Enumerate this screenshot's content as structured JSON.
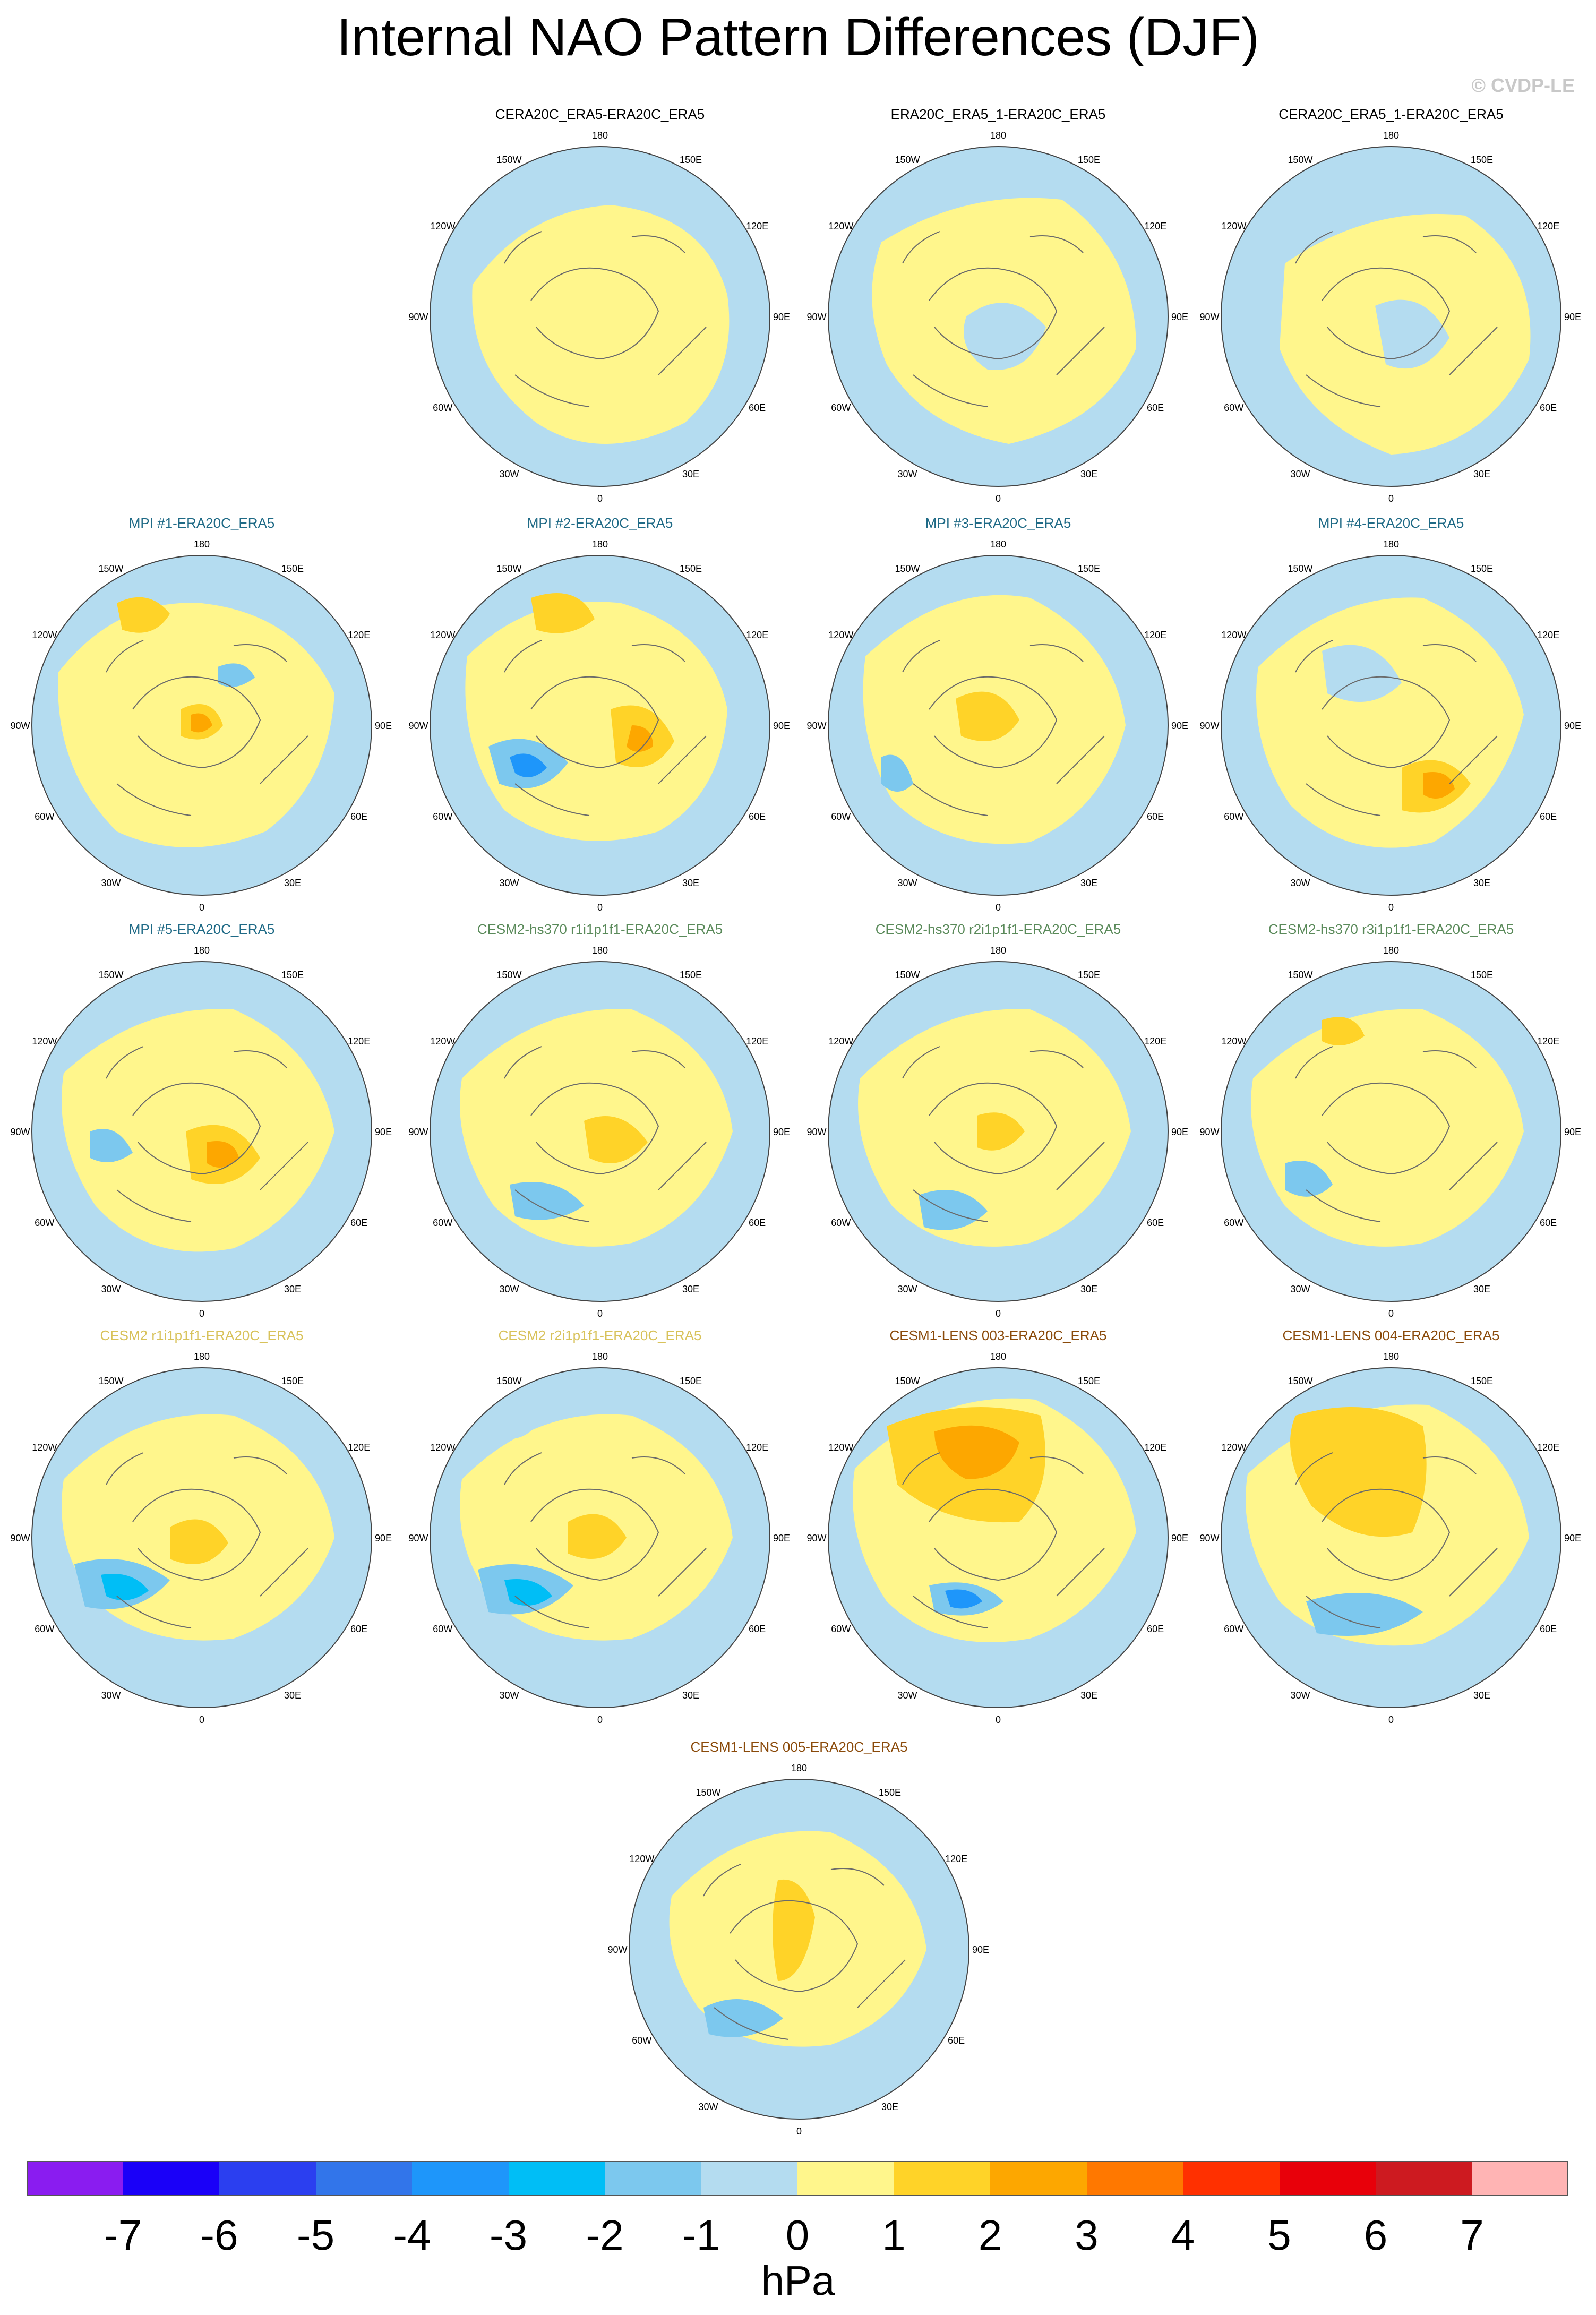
{
  "title": "Internal NAO Pattern Differences (DJF)",
  "credit": "© CVDP-LE",
  "lon_labels": {
    "n": "180",
    "nne": "150E",
    "ene": "120E",
    "e": "90E",
    "ese": "60E",
    "sse": "30E",
    "s": "0",
    "ssw": "30W",
    "wsw": "60W",
    "w": "90W",
    "wnw": "120W",
    "nnw": "150W"
  },
  "colors": {
    "label_black": "#000000",
    "label_teal": "#1f6a86",
    "label_green": "#5a8a5a",
    "label_yellow": "#d8c25a",
    "label_brown": "#8a4a0a"
  },
  "panels": [
    {
      "title": "CERA20C_ERA5-ERA20C_ERA5",
      "title_color": "#000000",
      "pattern": "neutral-a"
    },
    {
      "title": "ERA20C_ERA5_1-ERA20C_ERA5",
      "title_color": "#000000",
      "pattern": "neutral-b"
    },
    {
      "title": "CERA20C_ERA5_1-ERA20C_ERA5",
      "title_color": "#000000",
      "pattern": "neutral-c"
    },
    {
      "title": "MPI #1-ERA20C_ERA5",
      "title_color": "#1f6a86",
      "pattern": "mpi1"
    },
    {
      "title": "MPI #2-ERA20C_ERA5",
      "title_color": "#1f6a86",
      "pattern": "mpi2"
    },
    {
      "title": "MPI #3-ERA20C_ERA5",
      "title_color": "#1f6a86",
      "pattern": "mpi3"
    },
    {
      "title": "MPI #4-ERA20C_ERA5",
      "title_color": "#1f6a86",
      "pattern": "mpi4"
    },
    {
      "title": "MPI #5-ERA20C_ERA5",
      "title_color": "#1f6a86",
      "pattern": "mpi5"
    },
    {
      "title": "CESM2-hs370 r1i1p1f1-ERA20C_ERA5",
      "title_color": "#5a8a5a",
      "pattern": "hs1"
    },
    {
      "title": "CESM2-hs370 r2i1p1f1-ERA20C_ERA5",
      "title_color": "#5a8a5a",
      "pattern": "hs2"
    },
    {
      "title": "CESM2-hs370 r3i1p1f1-ERA20C_ERA5",
      "title_color": "#5a8a5a",
      "pattern": "hs3"
    },
    {
      "title": "CESM2 r1i1p1f1-ERA20C_ERA5",
      "title_color": "#d8c25a",
      "pattern": "c2r1"
    },
    {
      "title": "CESM2 r2i1p1f1-ERA20C_ERA5",
      "title_color": "#d8c25a",
      "pattern": "c2r2"
    },
    {
      "title": "CESM1-LENS 003-ERA20C_ERA5",
      "title_color": "#8a4a0a",
      "pattern": "l3"
    },
    {
      "title": "CESM1-LENS 004-ERA20C_ERA5",
      "title_color": "#8a4a0a",
      "pattern": "l4"
    },
    {
      "title": "CESM1-LENS 005-ERA20C_ERA5",
      "title_color": "#8a4a0a",
      "pattern": "l5"
    }
  ],
  "colorbar": {
    "units": "hPa",
    "labels": [
      "-7",
      "-6",
      "-5",
      "-4",
      "-3",
      "-2",
      "-1",
      "0",
      "1",
      "2",
      "3",
      "4",
      "5",
      "6",
      "7"
    ],
    "colors": [
      "#8a1cf0",
      "#1a00f8",
      "#2b3ff0",
      "#3275ea",
      "#1e96fa",
      "#00bef6",
      "#7cc8ee",
      "#b4dcf0",
      "#fff68c",
      "#ffd328",
      "#fda700",
      "#ff7800",
      "#ff3000",
      "#e8000a",
      "#cd1a20",
      "#ffb4b4"
    ]
  }
}
